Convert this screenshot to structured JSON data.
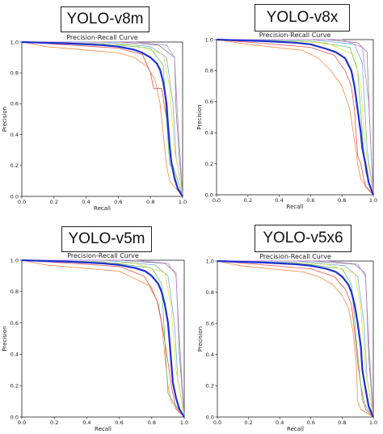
{
  "panels": [
    {
      "label": "YOLO-v8m"
    },
    {
      "label": "YOLO-v8x"
    },
    {
      "label": "YOLO-v5m"
    },
    {
      "label": "YOLO-v5x6"
    }
  ],
  "chart_data": [
    {
      "type": "line",
      "title": "Precision-Recall Curve",
      "xlabel": "Recall",
      "ylabel": "Precision",
      "xlim": [
        0,
        1
      ],
      "ylim": [
        0,
        1
      ],
      "xticks": [
        "0.0",
        "0.2",
        "0.4",
        "0.6",
        "0.8",
        "1.0"
      ],
      "yticks": [
        "0.0",
        "0.2",
        "0.4",
        "0.6",
        "0.8",
        "1.0"
      ],
      "grid": false,
      "series": [
        {
          "color": "#1f2fd6",
          "emphasis": true,
          "x": [
            0,
            0.3,
            0.5,
            0.6,
            0.7,
            0.75,
            0.8,
            0.84,
            0.86,
            0.88,
            0.9,
            0.91,
            0.92,
            0.93,
            0.95,
            0.97,
            1.0
          ],
          "y": [
            1.0,
            0.99,
            0.98,
            0.97,
            0.95,
            0.93,
            0.9,
            0.86,
            0.82,
            0.74,
            0.6,
            0.45,
            0.32,
            0.22,
            0.12,
            0.05,
            0.0
          ]
        },
        {
          "color": "#808080",
          "x": [
            0,
            0.6,
            0.85,
            0.95,
            0.96,
            0.98,
            1.0
          ],
          "y": [
            1.0,
            1.0,
            0.98,
            0.9,
            0.55,
            0.25,
            0.0
          ]
        },
        {
          "color": "#6db0f0",
          "x": [
            0,
            0.5,
            0.8,
            0.9,
            0.94,
            0.96,
            1.0
          ],
          "y": [
            1.0,
            1.0,
            0.97,
            0.9,
            0.6,
            0.25,
            0.0
          ]
        },
        {
          "color": "#c080e0",
          "x": [
            0,
            0.7,
            0.9,
            0.95,
            0.97,
            1.0
          ],
          "y": [
            1.0,
            1.0,
            0.98,
            0.9,
            0.5,
            0.0
          ]
        },
        {
          "color": "#f58a3a",
          "x": [
            0,
            0.15,
            0.6,
            0.7,
            0.78,
            0.83,
            0.86,
            0.88,
            0.9,
            0.92,
            1.0
          ],
          "y": [
            1.0,
            0.97,
            0.93,
            0.9,
            0.84,
            0.75,
            0.6,
            0.4,
            0.2,
            0.1,
            0.0
          ]
        },
        {
          "color": "#e55050",
          "x": [
            0,
            0.6,
            0.75,
            0.8,
            0.82,
            0.87,
            0.9,
            0.92,
            0.95,
            1.0
          ],
          "y": [
            1.0,
            0.96,
            0.92,
            0.8,
            0.7,
            0.7,
            0.5,
            0.3,
            0.1,
            0.0
          ]
        },
        {
          "color": "#60c070",
          "x": [
            0,
            0.5,
            0.8,
            0.88,
            0.9,
            0.92,
            0.94,
            1.0
          ],
          "y": [
            1.0,
            0.99,
            0.96,
            0.85,
            0.5,
            0.2,
            0.2,
            0.0
          ]
        },
        {
          "color": "#e4e23c",
          "x": [
            0,
            0.7,
            0.88,
            0.92,
            0.95,
            1.0
          ],
          "y": [
            1.0,
            0.98,
            0.92,
            0.7,
            0.3,
            0.0
          ]
        }
      ]
    },
    {
      "type": "line",
      "title": "Precision-Recall Curve",
      "xlabel": "Recall",
      "ylabel": "Precision",
      "xlim": [
        0,
        1
      ],
      "ylim": [
        0,
        1
      ],
      "xticks": [
        "0.0",
        "0.2",
        "0.4",
        "0.6",
        "0.8",
        "1.0"
      ],
      "yticks": [
        "0.0",
        "0.2",
        "0.4",
        "0.6",
        "0.8",
        "1.0"
      ],
      "grid": false,
      "series": [
        {
          "color": "#1f2fd6",
          "emphasis": true,
          "x": [
            0,
            0.3,
            0.5,
            0.6,
            0.7,
            0.76,
            0.82,
            0.86,
            0.88,
            0.9,
            0.92,
            0.93,
            0.95,
            0.97,
            1.0
          ],
          "y": [
            1.0,
            0.99,
            0.98,
            0.97,
            0.94,
            0.92,
            0.88,
            0.8,
            0.7,
            0.55,
            0.4,
            0.3,
            0.2,
            0.08,
            0.0
          ]
        },
        {
          "color": "#808080",
          "x": [
            0,
            0.7,
            0.9,
            0.96,
            0.98,
            1.0
          ],
          "y": [
            1.0,
            1.0,
            0.98,
            0.92,
            0.4,
            0.0
          ]
        },
        {
          "color": "#6db0f0",
          "x": [
            0,
            0.6,
            0.88,
            0.93,
            0.96,
            1.0
          ],
          "y": [
            1.0,
            1.0,
            0.97,
            0.85,
            0.3,
            0.0
          ]
        },
        {
          "color": "#c080e0",
          "x": [
            0,
            0.8,
            0.93,
            0.97,
            1.0
          ],
          "y": [
            1.0,
            1.0,
            0.95,
            0.6,
            0.0
          ]
        },
        {
          "color": "#f58a3a",
          "x": [
            0,
            0.2,
            0.55,
            0.65,
            0.73,
            0.8,
            0.85,
            0.88,
            0.9,
            0.92,
            1.0
          ],
          "y": [
            1.0,
            0.97,
            0.93,
            0.88,
            0.8,
            0.7,
            0.55,
            0.35,
            0.2,
            0.1,
            0.0
          ]
        },
        {
          "color": "#e55050",
          "x": [
            0,
            0.6,
            0.75,
            0.82,
            0.86,
            0.88,
            0.9,
            0.92,
            0.95,
            1.0
          ],
          "y": [
            1.0,
            0.95,
            0.9,
            0.8,
            0.7,
            0.55,
            0.25,
            0.2,
            0.05,
            0.0
          ]
        },
        {
          "color": "#60c070",
          "x": [
            0,
            0.6,
            0.85,
            0.9,
            0.93,
            0.95,
            1.0
          ],
          "y": [
            1.0,
            0.99,
            0.95,
            0.8,
            0.4,
            0.15,
            0.0
          ]
        },
        {
          "color": "#e4e23c",
          "x": [
            0,
            0.7,
            0.88,
            0.92,
            0.95,
            1.0
          ],
          "y": [
            1.0,
            0.98,
            0.9,
            0.7,
            0.3,
            0.0
          ]
        }
      ]
    },
    {
      "type": "line",
      "title": "Precision-Recall Curve",
      "xlabel": "Recall",
      "ylabel": "Precision",
      "xlim": [
        0,
        1
      ],
      "ylim": [
        0,
        1
      ],
      "xticks": [
        "0.0",
        "0.2",
        "0.4",
        "0.6",
        "0.8",
        "1.0"
      ],
      "yticks": [
        "0.0",
        "0.2",
        "0.4",
        "0.6",
        "0.8",
        "1.0"
      ],
      "grid": false,
      "series": [
        {
          "color": "#1f2fd6",
          "emphasis": true,
          "x": [
            0,
            0.3,
            0.5,
            0.6,
            0.7,
            0.76,
            0.8,
            0.84,
            0.86,
            0.88,
            0.9,
            0.91,
            0.92,
            0.93,
            0.95,
            0.97,
            1.0
          ],
          "y": [
            1.0,
            0.99,
            0.98,
            0.97,
            0.95,
            0.93,
            0.9,
            0.85,
            0.8,
            0.72,
            0.6,
            0.48,
            0.35,
            0.22,
            0.12,
            0.05,
            0.0
          ]
        },
        {
          "color": "#808080",
          "x": [
            0,
            0.6,
            0.88,
            0.95,
            0.97,
            1.0
          ],
          "y": [
            1.0,
            1.0,
            0.98,
            0.92,
            0.4,
            0.0
          ]
        },
        {
          "color": "#6db0f0",
          "x": [
            0,
            0.5,
            0.82,
            0.9,
            0.94,
            0.96,
            1.0
          ],
          "y": [
            1.0,
            1.0,
            0.97,
            0.9,
            0.6,
            0.25,
            0.0
          ]
        },
        {
          "color": "#c080e0",
          "x": [
            0,
            0.7,
            0.9,
            0.95,
            0.97,
            1.0
          ],
          "y": [
            1.0,
            1.0,
            0.98,
            0.9,
            0.5,
            0.0
          ]
        },
        {
          "color": "#f58a3a",
          "x": [
            0,
            0.15,
            0.6,
            0.7,
            0.78,
            0.83,
            0.86,
            0.88,
            0.9,
            0.92,
            1.0
          ],
          "y": [
            1.0,
            0.97,
            0.93,
            0.88,
            0.84,
            0.75,
            0.6,
            0.4,
            0.2,
            0.1,
            0.0
          ]
        },
        {
          "color": "#e55050",
          "x": [
            0,
            0.6,
            0.75,
            0.8,
            0.84,
            0.87,
            0.9,
            0.92,
            0.95,
            1.0
          ],
          "y": [
            1.0,
            0.96,
            0.9,
            0.82,
            0.72,
            0.55,
            0.35,
            0.2,
            0.05,
            0.0
          ]
        },
        {
          "color": "#60c070",
          "x": [
            0,
            0.5,
            0.8,
            0.86,
            0.9,
            0.93,
            1.0
          ],
          "y": [
            1.0,
            0.99,
            0.95,
            0.85,
            0.15,
            0.1,
            0.0
          ]
        },
        {
          "color": "#e4e23c",
          "x": [
            0,
            0.7,
            0.88,
            0.92,
            0.95,
            1.0
          ],
          "y": [
            1.0,
            0.98,
            0.92,
            0.7,
            0.3,
            0.0
          ]
        }
      ]
    },
    {
      "type": "line",
      "title": "Precision-Recall Curve",
      "xlabel": "Recall",
      "ylabel": "Precision",
      "xlim": [
        0,
        1
      ],
      "ylim": [
        0,
        1
      ],
      "xticks": [
        "0.0",
        "0.2",
        "0.4",
        "0.6",
        "0.8",
        "1.0"
      ],
      "yticks": [
        "0.0",
        "0.2",
        "0.4",
        "0.6",
        "0.8",
        "1.0"
      ],
      "grid": false,
      "series": [
        {
          "color": "#1f2fd6",
          "emphasis": true,
          "x": [
            0,
            0.3,
            0.5,
            0.6,
            0.7,
            0.76,
            0.8,
            0.84,
            0.86,
            0.88,
            0.9,
            0.92,
            0.93,
            0.95,
            0.97,
            1.0
          ],
          "y": [
            1.0,
            0.99,
            0.98,
            0.97,
            0.95,
            0.93,
            0.9,
            0.85,
            0.8,
            0.72,
            0.6,
            0.45,
            0.3,
            0.18,
            0.07,
            0.0
          ]
        },
        {
          "color": "#808080",
          "x": [
            0,
            0.6,
            0.88,
            0.95,
            0.97,
            1.0
          ],
          "y": [
            1.0,
            1.0,
            0.98,
            0.92,
            0.4,
            0.0
          ]
        },
        {
          "color": "#6db0f0",
          "x": [
            0,
            0.5,
            0.82,
            0.9,
            0.94,
            0.96,
            1.0
          ],
          "y": [
            1.0,
            1.0,
            0.97,
            0.9,
            0.6,
            0.25,
            0.0
          ]
        },
        {
          "color": "#c080e0",
          "x": [
            0,
            0.7,
            0.9,
            0.95,
            0.97,
            1.0
          ],
          "y": [
            1.0,
            1.0,
            0.98,
            0.9,
            0.5,
            0.0
          ]
        },
        {
          "color": "#f58a3a",
          "x": [
            0,
            0.15,
            0.55,
            0.65,
            0.74,
            0.8,
            0.84,
            0.87,
            0.89,
            0.9,
            0.92,
            1.0
          ],
          "y": [
            1.0,
            0.97,
            0.93,
            0.9,
            0.85,
            0.78,
            0.7,
            0.55,
            0.35,
            0.1,
            0.05,
            0.0
          ]
        },
        {
          "color": "#e55050",
          "x": [
            0,
            0.6,
            0.75,
            0.82,
            0.86,
            0.88,
            0.9,
            0.92,
            0.95,
            1.0
          ],
          "y": [
            1.0,
            0.95,
            0.9,
            0.82,
            0.72,
            0.55,
            0.35,
            0.2,
            0.05,
            0.0
          ]
        },
        {
          "color": "#60c070",
          "x": [
            0,
            0.5,
            0.8,
            0.86,
            0.9,
            0.93,
            1.0
          ],
          "y": [
            1.0,
            0.99,
            0.95,
            0.85,
            0.4,
            0.1,
            0.0
          ]
        },
        {
          "color": "#e4e23c",
          "x": [
            0,
            0.7,
            0.88,
            0.92,
            0.95,
            1.0
          ],
          "y": [
            1.0,
            0.98,
            0.92,
            0.7,
            0.3,
            0.0
          ]
        }
      ]
    }
  ]
}
